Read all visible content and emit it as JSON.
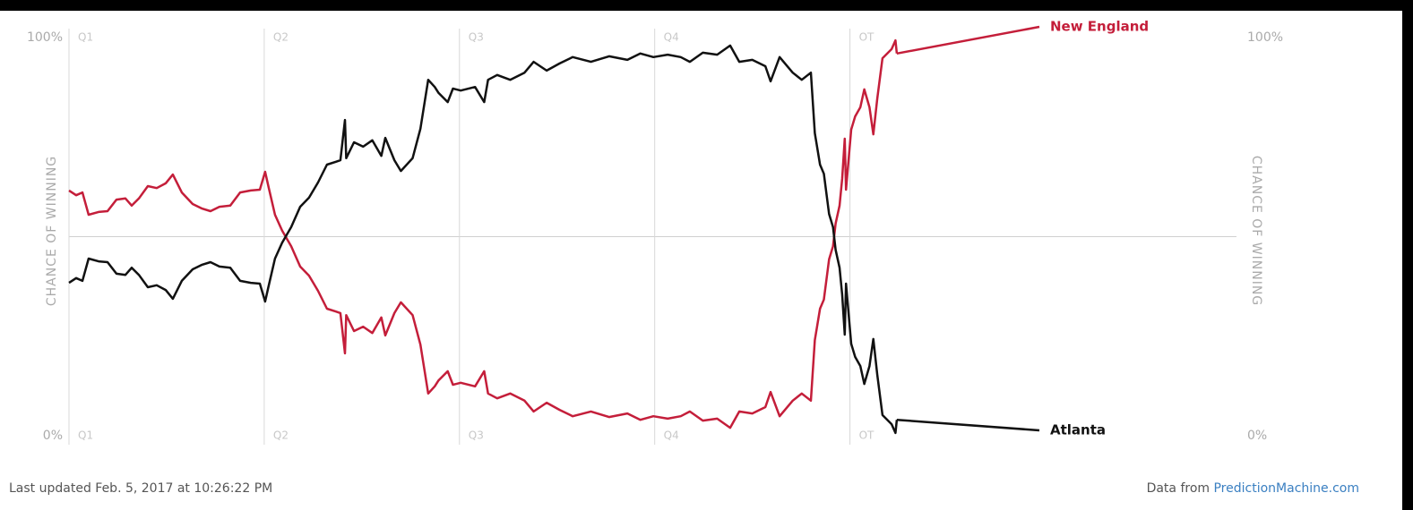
{
  "chart_data": {
    "type": "line",
    "y_label": "CHANCE OF WINNING",
    "footer_updated": "Last updated Feb. 5, 2017 at 10:26:22 PM",
    "footer_source_prefix": "Data from",
    "footer_source_link": "PredictionMachine.com",
    "xlim": [
      0,
      89.7
    ],
    "xticks": [
      {
        "value": 0,
        "label": "Q1"
      },
      {
        "value": 15,
        "label": "Q2"
      },
      {
        "value": 30,
        "label": "Q3"
      },
      {
        "value": 45,
        "label": "Q4"
      },
      {
        "value": 60,
        "label": "OT"
      }
    ],
    "ylim": [
      0,
      100
    ],
    "yticks": [
      {
        "value": 0,
        "label": "0%"
      },
      {
        "value": 100,
        "label": "100%"
      }
    ],
    "reference_line": 50,
    "x": [
      0,
      0.55,
      1.03,
      1.51,
      2.27,
      2.96,
      3.65,
      4.34,
      4.82,
      5.37,
      6.06,
      6.74,
      7.43,
      7.98,
      8.67,
      9.5,
      10.19,
      10.87,
      11.56,
      12.39,
      13.15,
      13.97,
      14.66,
      15.07,
      15.35,
      15.83,
      16.38,
      17.07,
      17.76,
      18.44,
      19.13,
      19.82,
      20.51,
      20.85,
      21.2,
      21.3,
      21.9,
      22.6,
      23.3,
      24.0,
      24.3,
      25.0,
      25.5,
      26.4,
      27.0,
      27.6,
      28.1,
      28.4,
      29.1,
      29.5,
      30.1,
      31.2,
      31.9,
      32.2,
      32.9,
      33.9,
      35.0,
      35.7,
      36.7,
      37.7,
      38.7,
      40.1,
      41.5,
      42.9,
      43.9,
      44.9,
      46.0,
      47.0,
      47.7,
      48.7,
      49.8,
      50.8,
      51.5,
      52.5,
      53.5,
      53.9,
      54.6,
      55.6,
      56.3,
      57.0,
      57.3,
      57.7,
      58.0,
      58.4,
      58.7,
      58.9,
      59.2,
      59.4,
      59.6,
      59.7,
      60.1,
      60.4,
      60.8,
      61.1,
      61.5,
      61.8,
      62.1,
      62.5,
      63.2,
      63.5,
      63.6
    ],
    "series": [
      {
        "name": "New England",
        "color": "#c41e3a",
        "values": [
          61.6,
          60.4,
          61.1,
          55.5,
          56.2,
          56.4,
          59.3,
          59.6,
          57.8,
          59.6,
          62.7,
          62.2,
          63.4,
          65.6,
          61.1,
          58.2,
          57.1,
          56.4,
          57.5,
          57.8,
          61.1,
          61.6,
          61.8,
          66.3,
          62.2,
          55.5,
          51.5,
          47.6,
          42.5,
          40.2,
          36.4,
          31.9,
          31.2,
          30.8,
          20.7,
          30.3,
          26.3,
          27.4,
          25.8,
          29.7,
          25.2,
          30.8,
          33.5,
          30.3,
          22.9,
          10.6,
          12.4,
          13.9,
          16.2,
          12.8,
          13.3,
          12.4,
          16.2,
          10.6,
          9.4,
          10.6,
          8.8,
          6.1,
          8.3,
          6.5,
          4.9,
          6.1,
          4.7,
          5.6,
          4.0,
          4.9,
          4.3,
          4.9,
          6.1,
          3.8,
          4.3,
          2.0,
          6.1,
          5.6,
          7.2,
          11.0,
          4.9,
          8.8,
          10.6,
          8.8,
          24.0,
          31.9,
          34.2,
          44.3,
          47.6,
          53.3,
          57.8,
          64.5,
          74.6,
          61.8,
          76.9,
          80.2,
          82.5,
          87.0,
          82.5,
          75.7,
          84.7,
          94.8,
          97.1,
          99.3,
          96.0
        ]
      },
      {
        "name": "Atlanta",
        "color": "#111111",
        "values": [
          38.4,
          39.6,
          38.9,
          44.5,
          43.8,
          43.6,
          40.7,
          40.4,
          42.2,
          40.4,
          37.3,
          37.8,
          36.6,
          34.4,
          38.9,
          41.8,
          42.9,
          43.6,
          42.5,
          42.2,
          38.9,
          38.4,
          38.2,
          33.7,
          37.8,
          44.5,
          48.5,
          52.4,
          57.5,
          59.8,
          63.6,
          68.1,
          68.8,
          69.2,
          79.3,
          69.7,
          73.7,
          72.6,
          74.2,
          70.3,
          74.8,
          69.2,
          66.5,
          69.7,
          77.1,
          89.4,
          87.6,
          86.1,
          83.8,
          87.2,
          86.7,
          87.6,
          83.8,
          89.4,
          90.6,
          89.4,
          91.2,
          93.9,
          91.7,
          93.5,
          95.1,
          93.9,
          95.3,
          94.4,
          96.0,
          95.1,
          95.7,
          95.1,
          93.9,
          96.2,
          95.7,
          98.0,
          93.9,
          94.4,
          92.8,
          89.0,
          95.1,
          91.2,
          89.4,
          91.2,
          76.0,
          68.1,
          65.8,
          55.7,
          52.4,
          46.7,
          42.2,
          35.5,
          25.4,
          38.2,
          23.1,
          19.8,
          17.5,
          13.0,
          17.5,
          24.3,
          15.3,
          5.2,
          2.9,
          0.7,
          4.0
        ]
      }
    ]
  }
}
